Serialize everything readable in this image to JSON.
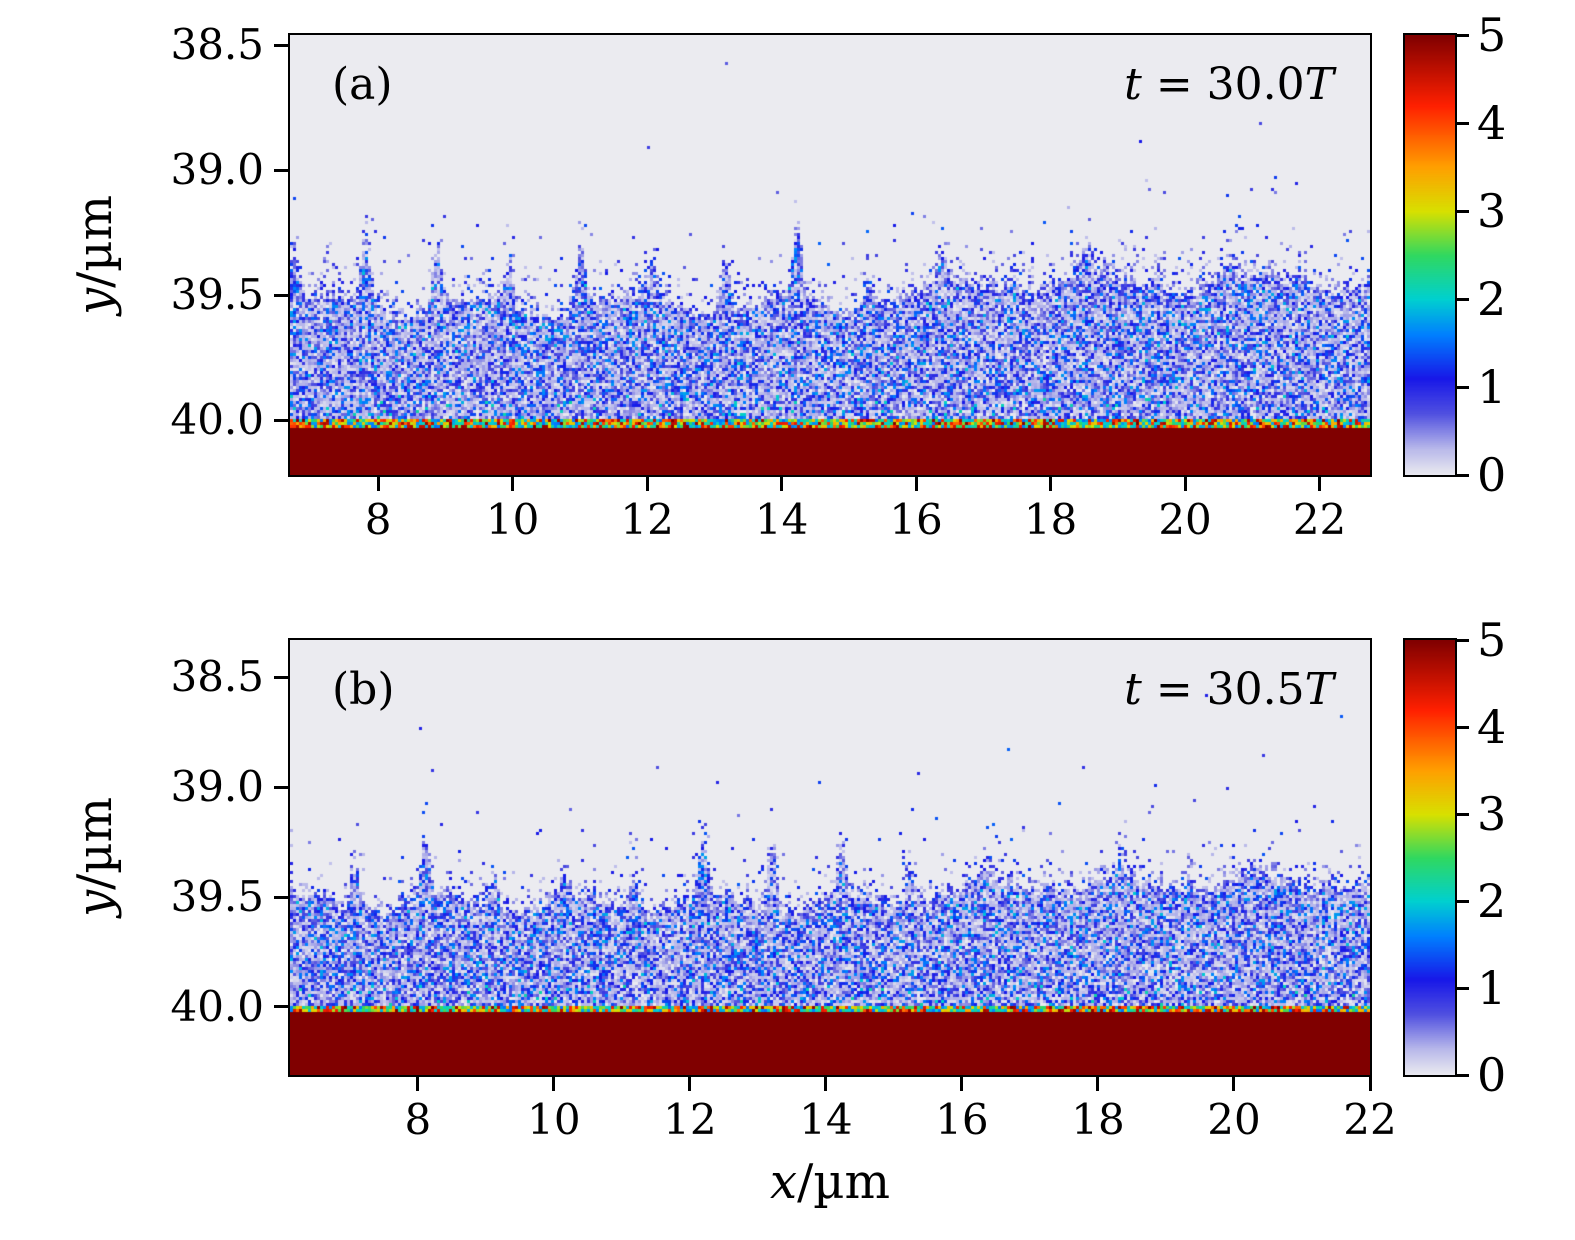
{
  "figure": {
    "background": "#ffffff",
    "x_label": "x/µm",
    "y_label": "y/µm",
    "x_label_parts": {
      "var": "x",
      "rest": "/µm"
    },
    "y_label_parts": {
      "var": "y",
      "rest": "/µm"
    }
  },
  "colormap": {
    "stops": [
      {
        "v": 0.0,
        "color": "#ebebf0"
      },
      {
        "v": 0.3,
        "color": "#b9b9ea"
      },
      {
        "v": 0.7,
        "color": "#5050e0"
      },
      {
        "v": 1.1,
        "color": "#1818e8"
      },
      {
        "v": 1.6,
        "color": "#0080ff"
      },
      {
        "v": 2.0,
        "color": "#00d0d0"
      },
      {
        "v": 2.5,
        "color": "#30d860"
      },
      {
        "v": 3.0,
        "color": "#d8e000"
      },
      {
        "v": 3.5,
        "color": "#ffa000"
      },
      {
        "v": 4.2,
        "color": "#ff2000"
      },
      {
        "v": 5.0,
        "color": "#800000"
      }
    ]
  },
  "colorbar": {
    "min": 0,
    "max": 5,
    "ticks": [
      5,
      4,
      3,
      2,
      1,
      0
    ]
  },
  "chart_data": [
    {
      "type": "heatmap",
      "panel": "(a)",
      "annotation": "t = 30.0T",
      "time_parts": {
        "var1": "t",
        "mid": " = 30.0",
        "var2": "T"
      },
      "xlabel": "x/µm",
      "ylabel": "y/µm",
      "x_range": [
        6.69,
        22.75
      ],
      "y_range": [
        38.46,
        40.22
      ],
      "y_increases_downward": true,
      "x_ticks": [
        8,
        10,
        12,
        14,
        16,
        18,
        20,
        22
      ],
      "y_ticks": [
        38.5,
        39.0,
        39.5,
        40.0
      ],
      "colorbar_range": [
        0,
        5
      ],
      "regions": [
        {
          "name": "vacuum",
          "y_to": 39.35,
          "value": 0
        },
        {
          "name": "expanding-plasma-speckle",
          "y_from": 39.35,
          "y_to": 40.0,
          "value_range": [
            0,
            2
          ]
        },
        {
          "name": "interface-line",
          "y_at": 40.0,
          "value_range": [
            1.5,
            5
          ]
        },
        {
          "name": "target-slab",
          "y_from": 40.0,
          "value": 5
        }
      ],
      "render": {
        "seed": 7,
        "boundary": {
          "base": 39.57,
          "wave_len": 2.3,
          "wave_amp": 0.04,
          "spike_period": 1.07,
          "spike_min": 0.1,
          "spike_max": 0.3,
          "phase": 0.2,
          "smooth_from_x": 15
        }
      }
    },
    {
      "type": "heatmap",
      "panel": "(b)",
      "annotation": "t = 30.5T",
      "time_parts": {
        "var1": "t",
        "mid": " = 30.5",
        "var2": "T"
      },
      "xlabel": "x/µm",
      "ylabel": "y/µm",
      "x_range": [
        6.12,
        22.0
      ],
      "y_range": [
        38.33,
        40.31
      ],
      "y_increases_downward": true,
      "x_ticks": [
        8,
        10,
        12,
        14,
        16,
        18,
        20,
        22
      ],
      "y_ticks": [
        38.5,
        39.0,
        39.5,
        40.0
      ],
      "colorbar_range": [
        0,
        5
      ],
      "regions": [
        {
          "name": "vacuum",
          "y_to": 39.35,
          "value": 0
        },
        {
          "name": "expanding-plasma-speckle",
          "y_from": 39.35,
          "y_to": 40.0,
          "value_range": [
            0,
            2
          ]
        },
        {
          "name": "interface-line",
          "y_at": 40.0,
          "value_range": [
            1.5,
            5
          ]
        },
        {
          "name": "target-slab",
          "y_from": 40.0,
          "value": 5
        }
      ],
      "render": {
        "seed": 13,
        "boundary": {
          "base": 39.56,
          "wave_len": 2.0,
          "wave_amp": 0.04,
          "spike_period": 1.02,
          "spike_min": 0.1,
          "spike_max": 0.28,
          "phase": 0.55,
          "smooth_from_x": 14.5
        }
      }
    }
  ]
}
